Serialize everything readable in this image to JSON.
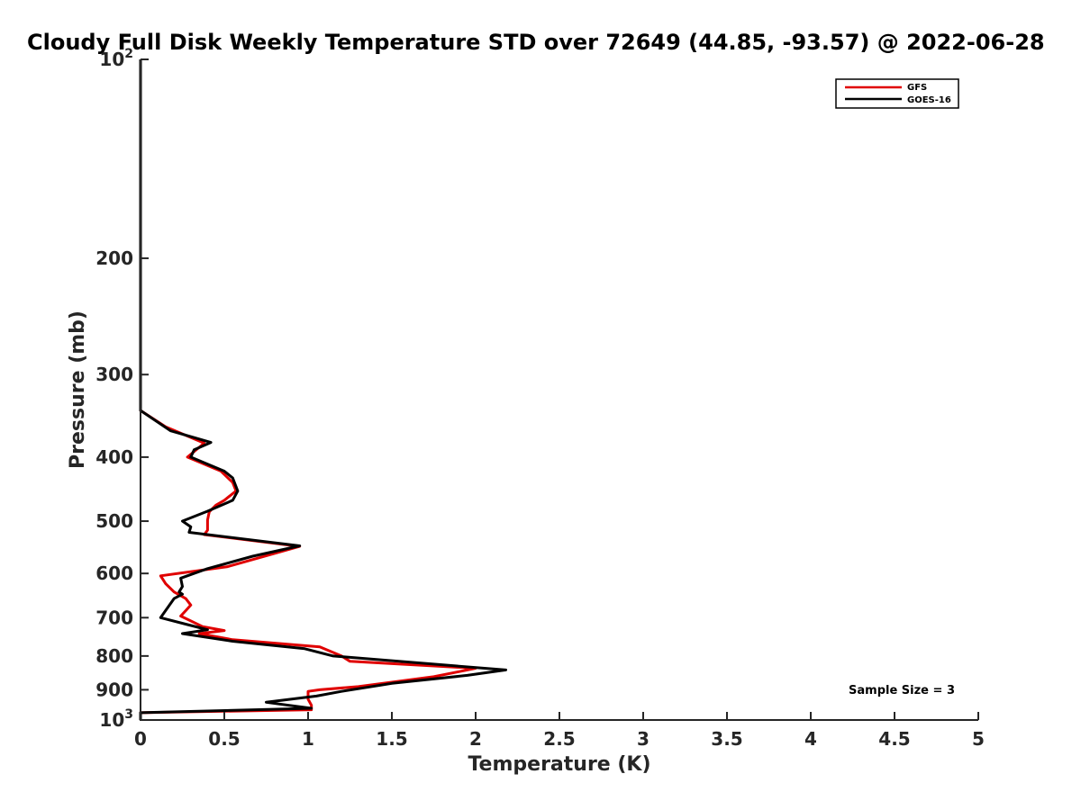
{
  "chart_data": {
    "type": "line",
    "title": "Cloudy Full Disk Weekly Temperature STD over 72649 (44.85, -93.57) @ 2022-06-28",
    "xlabel": "Temperature (K)",
    "ylabel": "Pressure (mb)",
    "xlim": [
      0,
      5
    ],
    "ylim": [
      100,
      1000
    ],
    "y_scale": "log",
    "y_reversed": true,
    "x_ticks": [
      0,
      0.5,
      1,
      1.5,
      2,
      2.5,
      3,
      3.5,
      4,
      4.5,
      5
    ],
    "x_tick_labels": [
      "0",
      "0.5",
      "1",
      "1.5",
      "2",
      "2.5",
      "3",
      "3.5",
      "4",
      "4.5",
      "5"
    ],
    "y_ticks": [
      {
        "value": 100,
        "label": "10",
        "exp": "2"
      },
      {
        "value": 200,
        "label": "200",
        "exp": ""
      },
      {
        "value": 300,
        "label": "300",
        "exp": ""
      },
      {
        "value": 400,
        "label": "400",
        "exp": ""
      },
      {
        "value": 500,
        "label": "500",
        "exp": ""
      },
      {
        "value": 600,
        "label": "600",
        "exp": ""
      },
      {
        "value": 700,
        "label": "700",
        "exp": ""
      },
      {
        "value": 800,
        "label": "800",
        "exp": ""
      },
      {
        "value": 900,
        "label": "900",
        "exp": ""
      },
      {
        "value": 1000,
        "label": "10",
        "exp": "3"
      }
    ],
    "grid": false,
    "legend_position": "top-right",
    "annotation": "Sample Size = 3",
    "series": [
      {
        "name": "GFS",
        "color": "#e00000",
        "points": [
          [
            0,
            100
          ],
          [
            0,
            340
          ],
          [
            0.15,
            360
          ],
          [
            0.38,
            381
          ],
          [
            0.28,
            400
          ],
          [
            0.48,
            420
          ],
          [
            0.55,
            437
          ],
          [
            0.57,
            450
          ],
          [
            0.5,
            465
          ],
          [
            0.45,
            473
          ],
          [
            0.41,
            484
          ],
          [
            0.4,
            498
          ],
          [
            0.4,
            516
          ],
          [
            0.38,
            524
          ],
          [
            0.95,
            546
          ],
          [
            0.52,
            586
          ],
          [
            0.12,
            605
          ],
          [
            0.15,
            622
          ],
          [
            0.2,
            640
          ],
          [
            0.27,
            655
          ],
          [
            0.3,
            670
          ],
          [
            0.27,
            683
          ],
          [
            0.24,
            696
          ],
          [
            0.37,
            722
          ],
          [
            0.5,
            732
          ],
          [
            0.35,
            740
          ],
          [
            0.55,
            756
          ],
          [
            1.07,
            775
          ],
          [
            1.2,
            800
          ],
          [
            1.25,
            815
          ],
          [
            2.0,
            835
          ],
          [
            1.9,
            845
          ],
          [
            1.75,
            860
          ],
          [
            1.3,
            890
          ],
          [
            1.07,
            900
          ],
          [
            1.0,
            905
          ],
          [
            1.0,
            930
          ],
          [
            1.02,
            950
          ],
          [
            1.02,
            965
          ],
          [
            0,
            975
          ],
          [
            0,
            1000
          ]
        ]
      },
      {
        "name": "GOES-16",
        "color": "#000000",
        "points": [
          [
            0,
            100
          ],
          [
            0,
            340
          ],
          [
            0.18,
            365
          ],
          [
            0.42,
            380
          ],
          [
            0.32,
            390
          ],
          [
            0.3,
            400
          ],
          [
            0.5,
            420
          ],
          [
            0.55,
            430
          ],
          [
            0.58,
            450
          ],
          [
            0.55,
            465
          ],
          [
            0.4,
            483
          ],
          [
            0.25,
            500
          ],
          [
            0.3,
            510
          ],
          [
            0.29,
            520
          ],
          [
            0.95,
            545
          ],
          [
            0.67,
            565
          ],
          [
            0.4,
            590
          ],
          [
            0.24,
            610
          ],
          [
            0.25,
            628
          ],
          [
            0.23,
            640
          ],
          [
            0.25,
            645
          ],
          [
            0.2,
            655
          ],
          [
            0.12,
            700
          ],
          [
            0.28,
            717
          ],
          [
            0.4,
            730
          ],
          [
            0.25,
            740
          ],
          [
            0.55,
            760
          ],
          [
            0.98,
            780
          ],
          [
            1.15,
            800
          ],
          [
            2.18,
            840
          ],
          [
            1.95,
            856
          ],
          [
            1.5,
            880
          ],
          [
            1.2,
            905
          ],
          [
            1.05,
            920
          ],
          [
            0.75,
            940
          ],
          [
            1.02,
            960
          ],
          [
            0,
            975
          ],
          [
            0,
            1000
          ]
        ]
      }
    ]
  }
}
